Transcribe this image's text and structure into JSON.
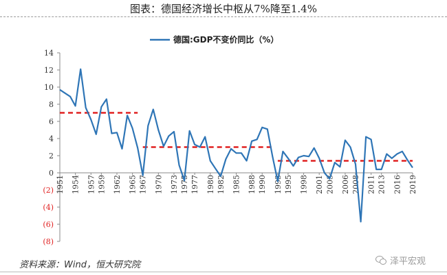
{
  "header": {
    "title": "图表：德国经济增长中枢从7%降至1.4%"
  },
  "source_note": "资料来源：Wind，恒大研究院",
  "watermark": {
    "icon": "wechat-icon",
    "text": "泽平宏观"
  },
  "colors": {
    "series": "#2e75b6",
    "reference": "#e02020",
    "negative_tick": "#e02020",
    "axis": "#888888"
  },
  "chart_data": {
    "type": "line",
    "title": "",
    "xlabel": "",
    "ylabel": "",
    "ylim": [
      -8,
      14
    ],
    "yticks": [
      14,
      12,
      10,
      8,
      6,
      4,
      2,
      0,
      -2,
      -4,
      -6,
      -8
    ],
    "ytick_labels": [
      "14",
      "12",
      "10",
      "8",
      "6",
      "4",
      "2",
      "0",
      "(2)",
      "(4)",
      "(6)",
      "(8)"
    ],
    "xlim": [
      1951,
      2019
    ],
    "xticks": [
      1951,
      1954,
      1957,
      1959,
      1962,
      1965,
      1967,
      1970,
      1973,
      1975,
      1977,
      1980,
      1982,
      1985,
      1988,
      1990,
      1993,
      1995,
      1998,
      2001,
      2003,
      2006,
      2008,
      2011,
      2013,
      2016,
      2019
    ],
    "legend": {
      "position": "top-center",
      "label": "德国:GDP不变价同比（%）"
    },
    "grid": false,
    "series": [
      {
        "name": "德国:GDP不变价同比（%）",
        "style": "solid",
        "x": [
          1951,
          1952,
          1953,
          1954,
          1955,
          1956,
          1957,
          1958,
          1959,
          1960,
          1961,
          1962,
          1963,
          1964,
          1965,
          1966,
          1967,
          1968,
          1969,
          1970,
          1971,
          1972,
          1973,
          1974,
          1975,
          1976,
          1977,
          1978,
          1979,
          1980,
          1981,
          1982,
          1983,
          1984,
          1985,
          1986,
          1987,
          1988,
          1989,
          1990,
          1991,
          1992,
          1993,
          1994,
          1995,
          1996,
          1997,
          1998,
          1999,
          2000,
          2001,
          2002,
          2003,
          2004,
          2005,
          2006,
          2007,
          2008,
          2009,
          2010,
          2011,
          2012,
          2013,
          2014,
          2015,
          2016,
          2017,
          2018,
          2019
        ],
        "y": [
          9.7,
          9.3,
          8.9,
          7.8,
          12.1,
          7.6,
          6.2,
          4.5,
          7.7,
          8.6,
          4.6,
          4.7,
          2.8,
          6.7,
          5.2,
          2.9,
          -0.3,
          5.5,
          7.4,
          5.0,
          3.1,
          4.3,
          4.8,
          0.9,
          -0.9,
          4.9,
          3.3,
          3.0,
          4.2,
          1.4,
          0.5,
          -0.4,
          1.6,
          2.8,
          2.3,
          2.3,
          1.4,
          3.7,
          3.9,
          5.3,
          5.1,
          1.9,
          -1.0,
          2.5,
          1.7,
          0.8,
          1.8,
          2.0,
          1.9,
          2.9,
          1.7,
          0.0,
          -0.7,
          1.2,
          0.7,
          3.8,
          3.0,
          1.0,
          -5.7,
          4.2,
          3.9,
          0.4,
          0.4,
          2.2,
          1.7,
          2.2,
          2.5,
          1.5,
          0.6
        ]
      },
      {
        "name": "",
        "style": "dashed",
        "x": [
          1951,
          1966
        ],
        "y": [
          7,
          7
        ]
      },
      {
        "name": "",
        "style": "dashed",
        "x": [
          1967,
          1992
        ],
        "y": [
          3,
          3
        ]
      },
      {
        "name": "",
        "style": "dashed",
        "x": [
          1993,
          2019
        ],
        "y": [
          1.4,
          1.4
        ]
      }
    ]
  }
}
